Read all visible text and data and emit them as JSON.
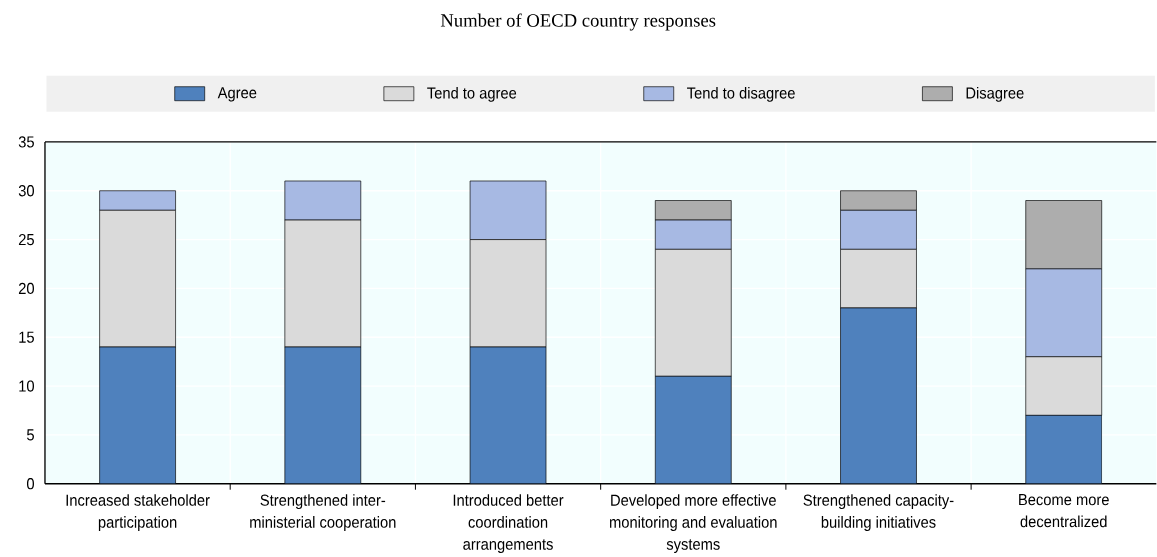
{
  "chart_data": {
    "type": "bar",
    "title": "Number of OECD country responses",
    "categories": [
      "Increased stakeholder participation",
      "Strengthened inter-ministerial cooperation",
      "Introduced better coordination arrangements",
      "Developed more effective monitoring and evaluation systems",
      "Strengthened capacity-building initiatives",
      "Become more decentralized"
    ],
    "series": [
      {
        "name": "Agree",
        "color": "#4f81bd",
        "values": [
          14,
          14,
          14,
          11,
          18,
          7
        ]
      },
      {
        "name": "Tend to agree",
        "color": "#dadada",
        "values": [
          14,
          13,
          11,
          13,
          6,
          6
        ]
      },
      {
        "name": "Tend to disagree",
        "color": "#a7b9e3",
        "values": [
          2,
          4,
          6,
          3,
          4,
          9
        ]
      },
      {
        "name": "Disagree",
        "color": "#adadad",
        "values": [
          null,
          null,
          null,
          2,
          2,
          7
        ]
      }
    ],
    "stacked": true,
    "ylim": [
      0,
      35
    ],
    "yticks": [
      0,
      5,
      10,
      15,
      20,
      25,
      30,
      35
    ],
    "grid": true,
    "legend": "top"
  }
}
